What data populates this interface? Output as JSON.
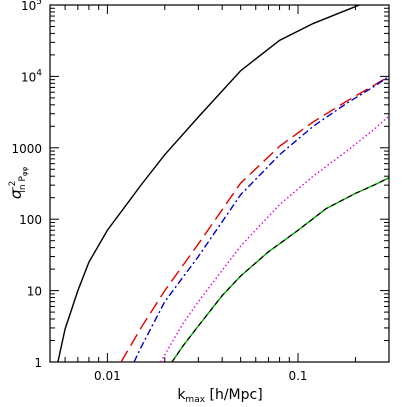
{
  "chart_data": {
    "type": "line",
    "xlabel": {
      "main": "k",
      "sub": "max",
      "rest": " [h/Mpc]"
    },
    "ylabel": {
      "main": "σ",
      "sup": "-2",
      "sub": "ln P",
      "subsub": "φφ"
    },
    "xscale": "log",
    "yscale": "log",
    "xlim": [
      0.005,
      0.3
    ],
    "ylim": [
      1,
      100000
    ],
    "x_ticks": [
      {
        "value": 0.01,
        "label": "0.01"
      },
      {
        "value": 0.1,
        "label": "0.1"
      }
    ],
    "y_ticks": [
      {
        "value": 1,
        "label": "1"
      },
      {
        "value": 10,
        "label": "10"
      },
      {
        "value": 100,
        "label": "100"
      },
      {
        "value": 1000,
        "label": "1000"
      },
      {
        "value": 10000,
        "label": "10",
        "sup": "4"
      },
      {
        "value": 100000,
        "label": "10",
        "sup": "5"
      }
    ],
    "grid": false,
    "series": [
      {
        "style": "solid",
        "color": "#000000",
        "x": [
          0.0055,
          0.006,
          0.007,
          0.008,
          0.01,
          0.015,
          0.02,
          0.03,
          0.05,
          0.08,
          0.12,
          0.17,
          0.21
        ],
        "y": [
          1,
          2.9,
          10,
          25,
          70,
          300,
          800,
          2700,
          12000,
          32000,
          55000,
          80000,
          100000
        ]
      },
      {
        "style": "longdash",
        "color": "#e00000",
        "x": [
          0.0118,
          0.015,
          0.02,
          0.03,
          0.05,
          0.08,
          0.12,
          0.18,
          0.25,
          0.3
        ],
        "y": [
          1,
          3,
          10,
          45,
          320,
          1050,
          2300,
          4500,
          7500,
          10000
        ]
      },
      {
        "style": "dashdot",
        "color": "#0000cc",
        "x": [
          0.0138,
          0.015,
          0.02,
          0.03,
          0.05,
          0.08,
          0.12,
          0.18,
          0.25,
          0.3
        ],
        "y": [
          1,
          1.6,
          7,
          30,
          220,
          800,
          2000,
          4200,
          7200,
          10000
        ]
      },
      {
        "style": "dotted",
        "color": "#dd00dd",
        "x": [
          0.019,
          0.025,
          0.03,
          0.05,
          0.08,
          0.12,
          0.18,
          0.25,
          0.3
        ],
        "y": [
          1,
          3.5,
          7,
          42,
          160,
          400,
          900,
          1800,
          2800
        ]
      },
      {
        "style": "solid",
        "color": "#00aa00",
        "x": [
          0.0218,
          0.025,
          0.03,
          0.04,
          0.05,
          0.07,
          0.1,
          0.14,
          0.2,
          0.25,
          0.3
        ],
        "y": [
          1,
          1.7,
          3.2,
          8.5,
          16,
          35,
          70,
          140,
          230,
          300,
          380
        ]
      },
      {
        "style": "dashed",
        "color": "#000000",
        "x": [
          0.0218,
          0.025,
          0.03,
          0.04,
          0.05,
          0.07,
          0.1,
          0.14,
          0.2,
          0.25,
          0.3
        ],
        "y": [
          1,
          1.7,
          3.2,
          8.5,
          16,
          35,
          70,
          140,
          230,
          300,
          380
        ]
      }
    ]
  }
}
